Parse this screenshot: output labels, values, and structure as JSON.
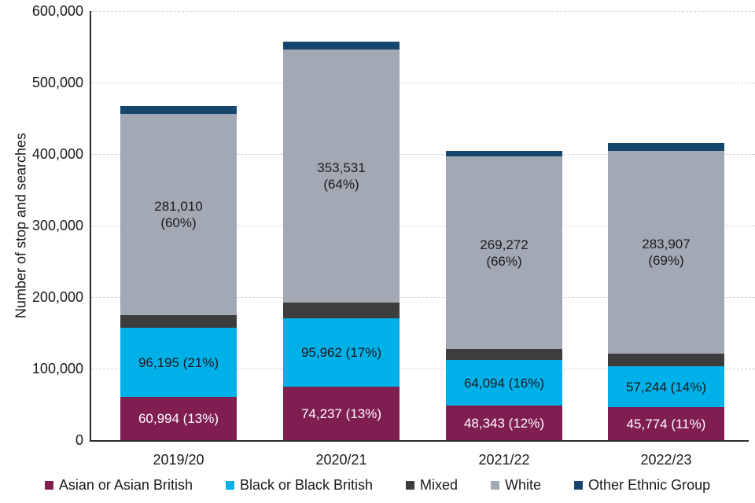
{
  "chart_data": {
    "type": "bar",
    "stacked": true,
    "title": "",
    "xlabel": "",
    "ylabel": "Number of stop and searches",
    "ylim": [
      0,
      600000
    ],
    "ytick_step": 100000,
    "ytick_labels": [
      "0",
      "100,000",
      "200,000",
      "300,000",
      "400,000",
      "500,000",
      "600,000"
    ],
    "grid": "horizontal dashed",
    "legend_position": "bottom",
    "categories": [
      "2019/20",
      "2020/21",
      "2021/22",
      "2022/23"
    ],
    "series": [
      {
        "name": "Asian or Asian British",
        "color": "#801E52",
        "label_color": "#ffffff",
        "values": [
          60994,
          74237,
          48343,
          45774
        ],
        "data_labels": [
          "60,994 (13%)",
          "74,237 (13%)",
          "48,343 (12%)",
          "45,774 (11%)"
        ]
      },
      {
        "name": "Black or Black British",
        "color": "#00B0E8",
        "label_color": "#1a1a1a",
        "values": [
          96195,
          95962,
          64094,
          57244
        ],
        "data_labels": [
          "96,195 (21%)",
          "95,962 (17%)",
          "64,094 (16%)",
          "57,244 (14%)"
        ]
      },
      {
        "name": "Mixed",
        "color": "#3D3D3D",
        "label_color": "#ffffff",
        "values": [
          18000,
          22000,
          15000,
          17500
        ],
        "values_estimated_from_pixels": true,
        "data_labels": [
          "",
          "",
          "",
          ""
        ]
      },
      {
        "name": "White",
        "color": "#A2A9B4",
        "label_color": "#1a1a1a",
        "values": [
          281010,
          353531,
          269272,
          283907
        ],
        "data_labels": [
          "281,010\n(60%)",
          "353,531\n(64%)",
          "269,272\n(66%)",
          "283,907\n(69%)"
        ]
      },
      {
        "name": "Other Ethnic Group",
        "color": "#16466E",
        "label_color": "#ffffff",
        "values": [
          11000,
          11000,
          8000,
          11000
        ],
        "values_estimated_from_pixels": true,
        "data_labels": [
          "",
          "",
          "",
          ""
        ]
      }
    ]
  }
}
